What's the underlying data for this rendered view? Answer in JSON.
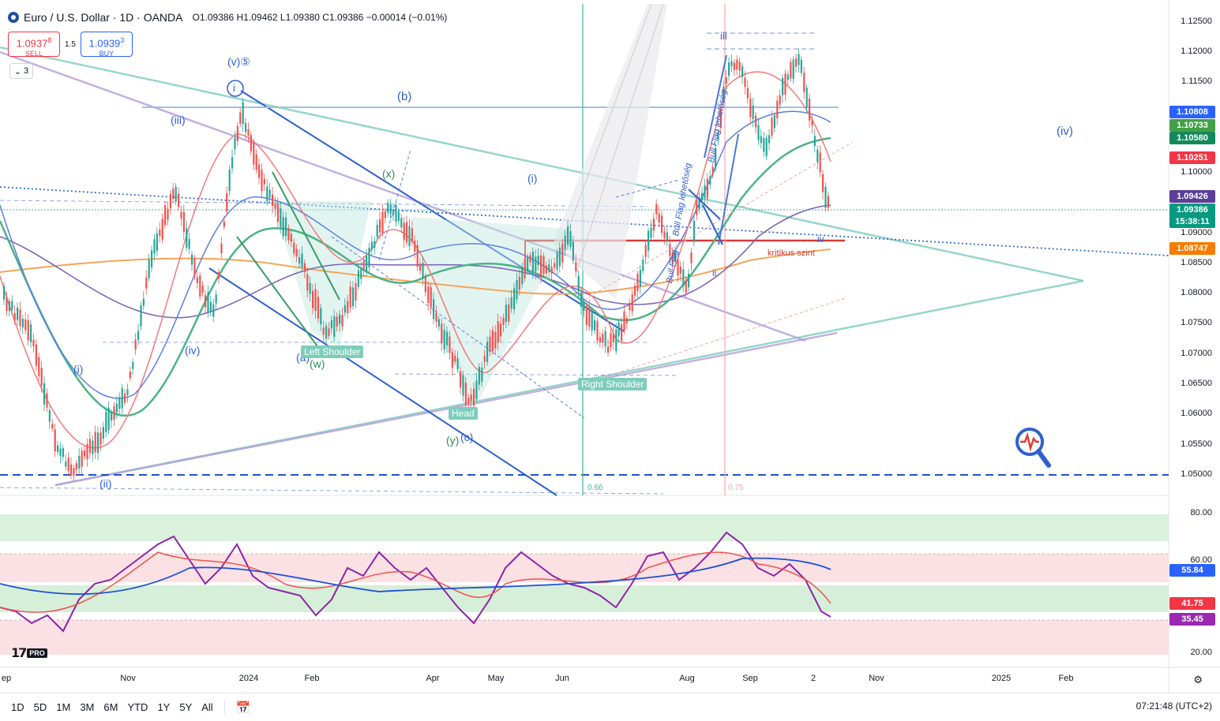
{
  "header": {
    "title": "Euro / U.S. Dollar · 1D · OANDA",
    "ohlc": "O1.09386 H1.09462 L1.09380 C1.09386 −0.00014 (−0.01%)"
  },
  "trade": {
    "sell_price": "1.0937",
    "sell_sup": "8",
    "sell_label": "SELL",
    "spread": "1.5",
    "buy_price": "1.0939",
    "buy_sup": "3",
    "buy_label": "BUY"
  },
  "layers_count": "3",
  "price_axis": [
    "1.12500",
    "1.12000",
    "1.11500",
    "1.11000",
    "1.10000",
    "1.09000",
    "1.08500",
    "1.08000",
    "1.07500",
    "1.07000",
    "1.06500",
    "1.06000",
    "1.05500",
    "1.05000"
  ],
  "price_badges": [
    {
      "text": "1.10808",
      "color": "#2962ff"
    },
    {
      "text": "1.10733",
      "color": "#43a047"
    },
    {
      "text": "1.10580",
      "color": "#138a5c"
    },
    {
      "text": "1.10251",
      "color": "#f23645"
    },
    {
      "text": "1.09426",
      "color": "#5b3e96"
    },
    {
      "text": "1.09386",
      "color": "#089981"
    },
    {
      "text": "15:38:11",
      "color": "#089981"
    },
    {
      "text": "1.08747",
      "color": "#f57c00"
    }
  ],
  "rsi_axis": [
    "80.00",
    "60.00",
    "20.00"
  ],
  "rsi_badges": [
    {
      "text": "55.84",
      "color": "#2962ff"
    },
    {
      "text": "41.75",
      "color": "#f23645"
    },
    {
      "text": "35.45",
      "color": "#9c27b0"
    }
  ],
  "time_axis": [
    "ep",
    "Nov",
    "2024",
    "Feb",
    "Apr",
    "May",
    "Jun",
    "Aug",
    "Sep",
    "2",
    "Nov",
    "2025",
    "Feb"
  ],
  "annotations": {
    "wave_b": "(b)",
    "wave_iv_big": "(iv)",
    "wave_iii": "(iii)",
    "wave_i_paren": "(i)",
    "wave_i_paren2": "(i)",
    "wave_x": "(x)",
    "wave_a": "(a)",
    "wave_w": "(w)",
    "wave_y": "(y)",
    "wave_c": "(c)",
    "wave_ii": "(ii)",
    "wave_iv_paren": "(iv)",
    "wave_v5": "(v)⑤",
    "wave_i_circle": "i",
    "left_shoulder": "Left Shoulder",
    "right_shoulder": "Right Shoulder",
    "head": "Head",
    "bull_flag_1": "Bull Flag lehetőség",
    "bull_flag_2": "Bull Flag lehetőség",
    "bull_flag_3": "Bull Flag",
    "kritikus": "kritikus szint",
    "fib_066": "0.66",
    "fib_075": "0.75",
    "iii_top": "iii",
    "iv_right": "iv",
    "ii_right": "ii"
  },
  "timeframes": [
    "1D",
    "5D",
    "1M",
    "3M",
    "6M",
    "YTD",
    "1Y",
    "5Y",
    "All"
  ],
  "clock": "07:21:48 (UTC+2)",
  "tv_pro": "PRO"
}
